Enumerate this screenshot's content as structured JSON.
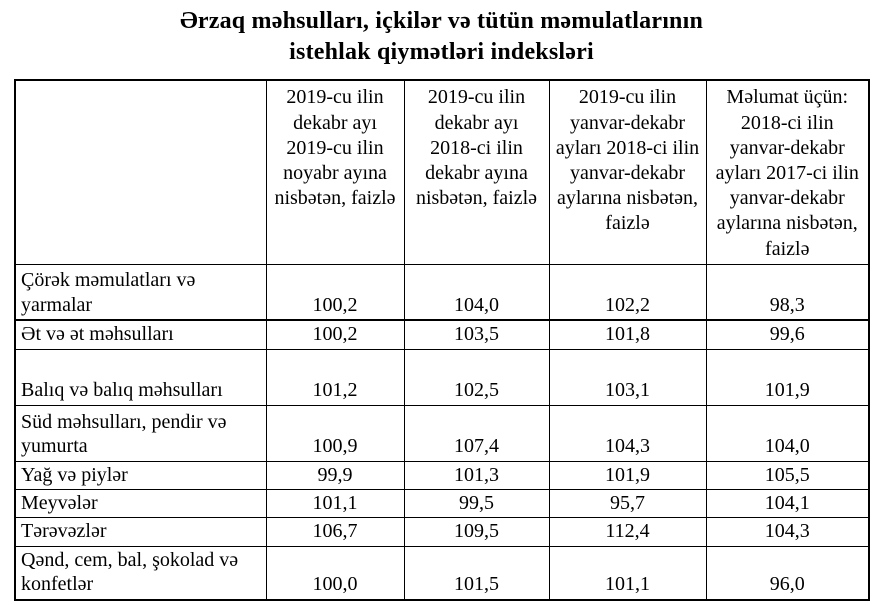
{
  "title": {
    "line1": "Ərzaq məhsulları, içkilər və tütün məmulatlarının",
    "line2": "istehlak qiymətləri indeksləri"
  },
  "table": {
    "corner_label": "",
    "columns": [
      "2019-cu ilin dekabr ayı 2019-cu ilin noyabr ayına nisbətən, faizlə",
      "2019-cu ilin dekabr ayı 2018-ci ilin dekabr ayına nisbətən, faizlə",
      "2019-cu ilin yanvar-dekabr ayları 2018-ci ilin yanvar-dekabr aylarına nisbətən, faizlə",
      "Məlumat üçün: 2018-ci ilin yanvar-dekabr ayları 2017-ci ilin yanvar-dekabr aylarına nisbətən, faizlə"
    ],
    "rows": [
      {
        "label": "Çörək məmulatları və yarmalar",
        "values": [
          "100,2",
          "104,0",
          "102,2",
          "98,3"
        ]
      },
      {
        "label": "Ət və ət məhsulları",
        "values": [
          "100,2",
          "103,5",
          "101,8",
          "99,6"
        ]
      },
      {
        "label": "Balıq və balıq məhsulları",
        "values": [
          "101,2",
          "102,5",
          "103,1",
          "101,9"
        ]
      },
      {
        "label": "Süd məhsulları, pendir və yumurta",
        "values": [
          "100,9",
          "107,4",
          "104,3",
          "104,0"
        ]
      },
      {
        "label": "Yağ və piylər",
        "values": [
          "99,9",
          "101,3",
          "101,9",
          "105,5"
        ]
      },
      {
        "label": "Meyvələr",
        "values": [
          "101,1",
          "99,5",
          "95,7",
          "104,1"
        ]
      },
      {
        "label": "Tərəvəzlər",
        "values": [
          "106,7",
          "109,5",
          "112,4",
          "104,3"
        ]
      },
      {
        "label": "Qənd, cem, bal, şokolad və konfetlər",
        "values": [
          "100,0",
          "101,5",
          "101,1",
          "96,0"
        ]
      }
    ]
  },
  "chart_data": {
    "type": "table",
    "title": "Ərzaq məhsulları, içkilər və tütün məmulatlarının istehlak qiymətləri indeksləri",
    "categories": [
      "Çörək məmulatları və yarmalar",
      "Ət və ət məhsulları",
      "Balıq və balıq məhsulları",
      "Süd məhsulları, pendir və yumurta",
      "Yağ və piylər",
      "Meyvələr",
      "Tərəvəzlər",
      "Qənd, cem, bal, şokolad və konfetlər"
    ],
    "series": [
      {
        "name": "2019-cu ilin dekabr ayı 2019-cu ilin noyabr ayına nisbətən, faizlə",
        "values": [
          100.2,
          100.2,
          101.2,
          100.9,
          99.9,
          101.1,
          106.7,
          100.0
        ]
      },
      {
        "name": "2019-cu ilin dekabr ayı 2018-ci ilin dekabr ayına nisbətən, faizlə",
        "values": [
          104.0,
          103.5,
          102.5,
          107.4,
          101.3,
          99.5,
          109.5,
          101.5
        ]
      },
      {
        "name": "2019-cu ilin yanvar-dekabr ayları 2018-ci ilin yanvar-dekabr aylarına nisbətən, faizlə",
        "values": [
          102.2,
          101.8,
          103.1,
          104.3,
          101.9,
          95.7,
          112.4,
          101.1
        ]
      },
      {
        "name": "Məlumat üçün: 2018-ci ilin yanvar-dekabr ayları 2017-ci ilin yanvar-dekabr aylarına nisbətən, faizlə",
        "values": [
          98.3,
          99.6,
          101.9,
          104.0,
          105.5,
          104.1,
          104.3,
          96.0
        ]
      }
    ]
  },
  "colors": {
    "text": "#000000",
    "border": "#000000",
    "background": "#ffffff"
  }
}
